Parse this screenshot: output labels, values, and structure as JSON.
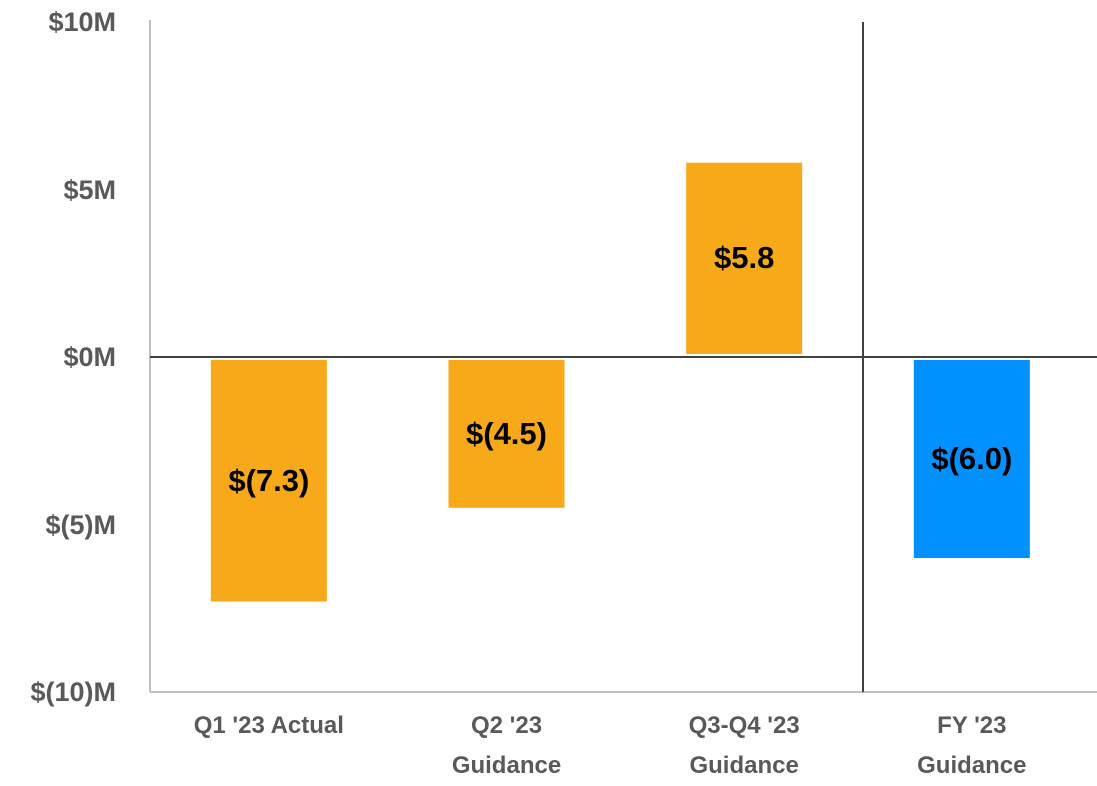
{
  "chart_data": {
    "type": "bar",
    "categories": [
      "Q1 '23 Actual",
      "Q2 '23\nGuidance",
      "Q3-Q4 '23\nGuidance",
      "FY '23\nGuidance"
    ],
    "values": [
      -7.3,
      -4.5,
      5.8,
      -6.0
    ],
    "value_labels": [
      "$(7.3)",
      "$(4.5)",
      "$5.8",
      "$(6.0)"
    ],
    "colors": [
      "#F7A919",
      "#F7A919",
      "#F7A919",
      "#0091FF"
    ],
    "ylim": [
      -10,
      10
    ],
    "yticks": [
      {
        "value": -10,
        "label": "$(10)M"
      },
      {
        "value": -5,
        "label": "$(5)M"
      },
      {
        "value": 0,
        "label": "$0M"
      },
      {
        "value": 5,
        "label": "$5M"
      },
      {
        "value": 10,
        "label": "$10M"
      }
    ]
  }
}
